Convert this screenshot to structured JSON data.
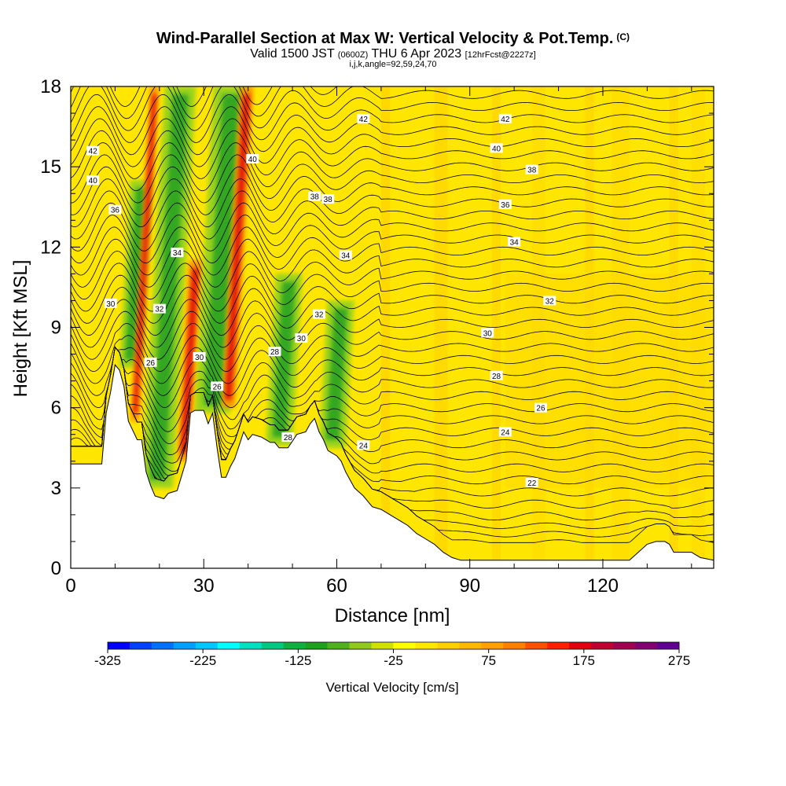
{
  "title": {
    "main": "Wind-Parallel Section at Max W: Vertical Velocity & Pot.Temp.",
    "copyright": "(C)",
    "valid_prefix": "Valid 1500 JST",
    "valid_z": "(0600Z)",
    "valid_date": "THU 6 Apr 2023",
    "forecast": "[12hrFcst@2227z]",
    "indices": "i,j,k,angle=92,59,24,70"
  },
  "chart_data": {
    "type": "heatmap",
    "xlabel": "Distance [nm]",
    "ylabel": "Height [Kft MSL]",
    "xlim": [
      0,
      145
    ],
    "ylim": [
      0,
      18
    ],
    "x_ticks": [
      0,
      30,
      60,
      90,
      120
    ],
    "y_ticks": [
      0,
      3,
      6,
      9,
      12,
      15,
      18
    ],
    "colorbar": {
      "label": "Vertical Velocity [cm/s]",
      "min": -325,
      "max": 275,
      "tick_labels": [
        "-325",
        "-225",
        "-125",
        "-25",
        "75",
        "175",
        "275"
      ],
      "colors": [
        "#0000ff",
        "#0040ff",
        "#0070ff",
        "#00a0ff",
        "#00c8ff",
        "#00ffff",
        "#00e0c0",
        "#00c880",
        "#10b040",
        "#20a020",
        "#50b020",
        "#90c820",
        "#d0e000",
        "#ffff00",
        "#ffe800",
        "#ffd000",
        "#ffb800",
        "#ffa000",
        "#ff8000",
        "#ff5000",
        "#ff2000",
        "#e00010",
        "#c00030",
        "#a00050",
        "#800070",
        "#600090"
      ]
    },
    "theta_contour_labels": [
      "22",
      "24",
      "26",
      "28",
      "30",
      "32",
      "34",
      "36",
      "38",
      "40",
      "42"
    ],
    "terrain_top_kft": [
      [
        0,
        3.9
      ],
      [
        7,
        3.9
      ],
      [
        8,
        5.8
      ],
      [
        9,
        6.6
      ],
      [
        10,
        7.6
      ],
      [
        11,
        7.4
      ],
      [
        12,
        6.8
      ],
      [
        13,
        5.5
      ],
      [
        15,
        4.8
      ],
      [
        16,
        4.8
      ],
      [
        17,
        3.6
      ],
      [
        18,
        3.1
      ],
      [
        19,
        2.7
      ],
      [
        21,
        2.6
      ],
      [
        22,
        2.8
      ],
      [
        24,
        2.9
      ],
      [
        26,
        4.0
      ],
      [
        27,
        5.8
      ],
      [
        28,
        5.9
      ],
      [
        29,
        5.9
      ],
      [
        30,
        5.9
      ],
      [
        31,
        5.4
      ],
      [
        32,
        5.8
      ],
      [
        33,
        4.5
      ],
      [
        34,
        3.4
      ],
      [
        35,
        3.4
      ],
      [
        36,
        3.8
      ],
      [
        37,
        4.1
      ],
      [
        38,
        4.6
      ],
      [
        39,
        5.1
      ],
      [
        40,
        4.8
      ],
      [
        41,
        5.0
      ],
      [
        43,
        4.9
      ],
      [
        45,
        4.7
      ],
      [
        46,
        4.7
      ],
      [
        47,
        4.5
      ],
      [
        49,
        4.5
      ],
      [
        51,
        5.0
      ],
      [
        53,
        5.1
      ],
      [
        54,
        5.4
      ],
      [
        55,
        5.6
      ],
      [
        56,
        5.1
      ],
      [
        57,
        4.8
      ],
      [
        58,
        4.4
      ],
      [
        59,
        4.3
      ],
      [
        60,
        4.2
      ],
      [
        61,
        4.0
      ],
      [
        62,
        3.6
      ],
      [
        63,
        3.3
      ],
      [
        64,
        3.0
      ],
      [
        66,
        2.7
      ],
      [
        67,
        2.5
      ],
      [
        68,
        2.3
      ],
      [
        70,
        2.2
      ],
      [
        72,
        2.0
      ],
      [
        74,
        1.8
      ],
      [
        76,
        1.6
      ],
      [
        78,
        1.3
      ],
      [
        80,
        1.1
      ],
      [
        82,
        0.9
      ],
      [
        84,
        0.6
      ],
      [
        86,
        0.4
      ],
      [
        88,
        0.3
      ],
      [
        90,
        0.3
      ],
      [
        95,
        0.3
      ],
      [
        100,
        0.3
      ],
      [
        110,
        0.3
      ],
      [
        120,
        0.3
      ],
      [
        126,
        0.3
      ],
      [
        128,
        0.6
      ],
      [
        130,
        0.9
      ],
      [
        132,
        1.0
      ],
      [
        134,
        1.0
      ],
      [
        135,
        0.9
      ],
      [
        136,
        0.6
      ],
      [
        140,
        0.6
      ],
      [
        142,
        0.4
      ],
      [
        145,
        0.3
      ]
    ],
    "velocity_bands": [
      {
        "kind": "down",
        "x0": 11,
        "x1": 16,
        "y0": 7.5,
        "y1": 14.5
      },
      {
        "kind": "up",
        "x0": 13.5,
        "x1": 15.5,
        "y0": 5.5,
        "y1": 18
      },
      {
        "kind": "down",
        "x0": 16,
        "x1": 23,
        "y0": 3.0,
        "y1": 18
      },
      {
        "kind": "up",
        "x0": 24,
        "x1": 27,
        "y0": 4.0,
        "y1": 11.5
      },
      {
        "kind": "down",
        "x0": 28,
        "x1": 36,
        "y0": 5.8,
        "y1": 18
      },
      {
        "kind": "up",
        "x0": 34,
        "x1": 37,
        "y0": 6.0,
        "y1": 18
      },
      {
        "kind": "down",
        "x0": 44,
        "x1": 50,
        "y0": 4.6,
        "y1": 11
      },
      {
        "kind": "down",
        "x0": 56,
        "x1": 62,
        "y0": 4.5,
        "y1": 10
      }
    ]
  }
}
